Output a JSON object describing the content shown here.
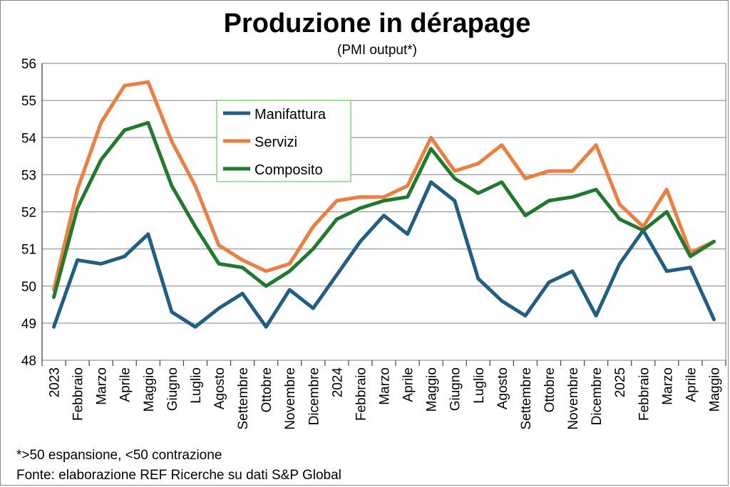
{
  "chart_data": {
    "type": "line",
    "title": "Produzione in dérapage",
    "subtitle": "(PMI output*)",
    "categories": [
      "2023",
      "Febbraio",
      "Marzo",
      "Aprile",
      "Maggio",
      "Giugno",
      "Luglio",
      "Agosto",
      "Settembre",
      "Ottobre",
      "Novembre",
      "Dicembre",
      "2024",
      "Febbraio",
      "Marzo",
      "Aprile",
      "Maggio",
      "Giugno",
      "Luglio",
      "Agosto",
      "Settembre",
      "Ottobre",
      "Novembre",
      "Dicembre",
      "2025",
      "Febbraio",
      "Marzo",
      "Aprile",
      "Maggio"
    ],
    "ylim": [
      48,
      56
    ],
    "yticks": [
      48,
      49,
      50,
      51,
      52,
      53,
      54,
      55,
      56
    ],
    "grid": true,
    "legend_position": "upper-left-inside",
    "series": [
      {
        "name": "Manifattura",
        "color": "#1f5f86",
        "values": [
          48.9,
          50.7,
          50.6,
          50.8,
          51.4,
          49.3,
          48.9,
          49.4,
          49.8,
          48.9,
          49.9,
          49.4,
          50.3,
          51.2,
          51.9,
          51.4,
          52.8,
          52.3,
          50.2,
          49.6,
          49.2,
          50.1,
          50.4,
          49.2,
          50.6,
          51.5,
          50.4,
          50.5,
          49.1
        ]
      },
      {
        "name": "Servizi",
        "color": "#ef7d3b",
        "values": [
          49.9,
          52.6,
          54.4,
          55.4,
          55.5,
          53.9,
          52.7,
          51.1,
          50.7,
          50.4,
          50.6,
          51.6,
          52.3,
          52.4,
          52.4,
          52.7,
          54.0,
          53.1,
          53.3,
          53.8,
          52.9,
          53.1,
          53.1,
          53.8,
          52.2,
          51.6,
          52.6,
          50.9,
          51.2
        ]
      },
      {
        "name": "Composito",
        "color": "#1e7a2c",
        "values": [
          49.7,
          52.1,
          53.4,
          54.2,
          54.4,
          52.7,
          51.6,
          50.6,
          50.5,
          50.0,
          50.4,
          51.0,
          51.8,
          52.1,
          52.3,
          52.4,
          53.7,
          52.9,
          52.5,
          52.8,
          51.9,
          52.3,
          52.4,
          52.6,
          51.8,
          51.5,
          52.0,
          50.8,
          51.2
        ]
      }
    ],
    "notes": [
      "*>50 espansione, <50 contrazione",
      "Fonte: elaborazione REF Ricerche su dati S&P Global"
    ],
    "legend_border_color": "#5fd35f",
    "gridline_color": "#999999"
  }
}
